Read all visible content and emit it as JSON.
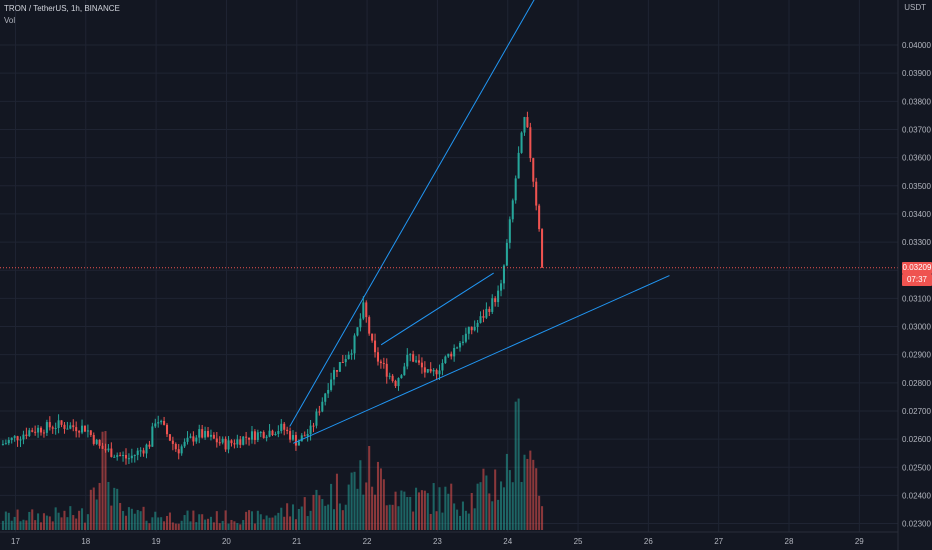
{
  "header": {
    "symbol_line": "TRON / TetherUS, 1h, BINANCE",
    "volume_label": "Vol",
    "currency": "USDT"
  },
  "price_tags": {
    "last_price": "0.03209",
    "countdown": "07:37"
  },
  "colors": {
    "background": "#131722",
    "grid": "#1f2433",
    "up": "#26a69a",
    "down": "#ef5350",
    "trendline": "#2196f3",
    "price_line": "#ef5350"
  },
  "chart_data": {
    "type": "candlestick",
    "title": "TRON / TetherUS, 1h, BINANCE",
    "x_ticks": [
      "17",
      "18",
      "19",
      "20",
      "21",
      "22",
      "23",
      "24",
      "25",
      "26",
      "27",
      "28",
      "29"
    ],
    "y_ticks": [
      "0.02300",
      "0.02400",
      "0.02500",
      "0.02600",
      "0.02700",
      "0.02800",
      "0.02900",
      "0.03000",
      "0.03100",
      "0.03200",
      "0.03300",
      "0.03400",
      "0.03500",
      "0.03600",
      "0.03700",
      "0.03800",
      "0.03900",
      "0.04000"
    ],
    "ylim": [
      0.0227,
      0.0416
    ],
    "xlim_days": [
      16.78,
      29.55
    ],
    "last_price": 0.03209,
    "price_key_points": [
      [
        16.8,
        0.0258
      ],
      [
        17.2,
        0.0263
      ],
      [
        17.6,
        0.0265
      ],
      [
        18.0,
        0.0264
      ],
      [
        18.2,
        0.0257
      ],
      [
        18.6,
        0.0253
      ],
      [
        18.9,
        0.0258
      ],
      [
        19.0,
        0.0268
      ],
      [
        19.3,
        0.0256
      ],
      [
        19.6,
        0.0262
      ],
      [
        20.0,
        0.0258
      ],
      [
        20.3,
        0.0261
      ],
      [
        20.8,
        0.0264
      ],
      [
        21.0,
        0.0259
      ],
      [
        21.2,
        0.0263
      ],
      [
        21.5,
        0.0283
      ],
      [
        21.8,
        0.0293
      ],
      [
        21.95,
        0.0307
      ],
      [
        22.1,
        0.029
      ],
      [
        22.4,
        0.028
      ],
      [
        22.6,
        0.029
      ],
      [
        22.9,
        0.0282
      ],
      [
        23.3,
        0.0294
      ],
      [
        23.6,
        0.0302
      ],
      [
        23.9,
        0.0313
      ],
      [
        24.05,
        0.034
      ],
      [
        24.15,
        0.036
      ],
      [
        24.25,
        0.0375
      ],
      [
        24.35,
        0.0355
      ],
      [
        24.45,
        0.0335
      ],
      [
        24.5,
        0.03209
      ]
    ],
    "volume_key_points": [
      [
        16.8,
        0.12
      ],
      [
        18.0,
        0.15
      ],
      [
        18.2,
        0.8
      ],
      [
        18.5,
        0.15
      ],
      [
        19.5,
        0.12
      ],
      [
        20.5,
        0.12
      ],
      [
        21.0,
        0.2
      ],
      [
        21.5,
        0.35
      ],
      [
        21.8,
        0.45
      ],
      [
        22.0,
        0.55
      ],
      [
        22.3,
        0.4
      ],
      [
        22.6,
        0.3
      ],
      [
        23.0,
        0.3
      ],
      [
        23.5,
        0.3
      ],
      [
        23.8,
        0.45
      ],
      [
        24.0,
        0.55
      ],
      [
        24.2,
        1.0
      ],
      [
        24.35,
        0.7
      ],
      [
        24.5,
        0.3
      ]
    ],
    "trendlines": [
      {
        "from": [
          20.9,
          0.02645
        ],
        "to": [
          26.3,
          0.05
        ]
      },
      {
        "from": [
          20.95,
          0.02585
        ],
        "to": [
          26.3,
          0.03181
        ]
      },
      {
        "from": [
          22.2,
          0.02935
        ],
        "to": [
          23.8,
          0.0319
        ]
      }
    ]
  }
}
